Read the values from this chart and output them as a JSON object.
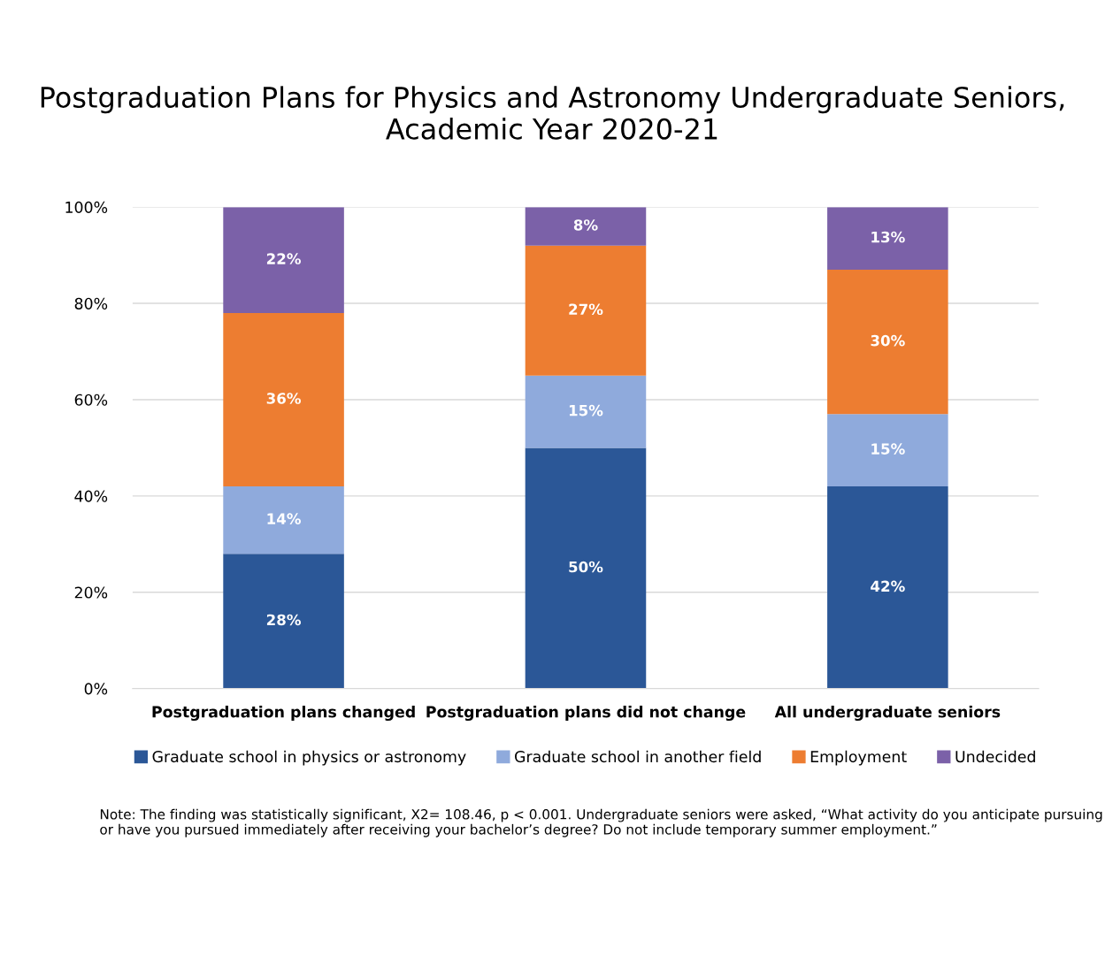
{
  "chart_data": {
    "type": "bar",
    "stacked": true,
    "title": "Postgraduation Plans for Physics and Astronomy Undergraduate Seniors, Academic Year 2020-21",
    "categories": [
      "Postgraduation plans changed",
      "Postgraduation plans did not change",
      "All undergraduate seniors"
    ],
    "series": [
      {
        "name": "Graduate school in physics or astronomy",
        "color": "#2b5797",
        "values": [
          28,
          50,
          42
        ],
        "value_labels": [
          "28%",
          "50%",
          "42%"
        ]
      },
      {
        "name": "Graduate school in another field",
        "color": "#8faadc",
        "values": [
          14,
          15,
          15
        ],
        "value_labels": [
          "14%",
          "15%",
          "15%"
        ]
      },
      {
        "name": "Employment",
        "color": "#ed7d31",
        "values": [
          36,
          27,
          30
        ],
        "value_labels": [
          "36%",
          "27%",
          "30%"
        ]
      },
      {
        "name": "Undecided",
        "color": "#7b61a8",
        "values": [
          22,
          8,
          13
        ],
        "value_labels": [
          "22%",
          "8%",
          "13%"
        ]
      }
    ],
    "ylim": [
      0,
      100
    ],
    "yticks": [
      {
        "value": 0,
        "label": "0%"
      },
      {
        "value": 20,
        "label": "20%"
      },
      {
        "value": 40,
        "label": "40%"
      },
      {
        "value": 60,
        "label": "60%"
      },
      {
        "value": 80,
        "label": "80%"
      },
      {
        "value": 100,
        "label": "100%"
      }
    ],
    "grid": "y",
    "legend": "bottom",
    "annotations": [
      "Note: The finding was statistically significant, X2= 108.46, p < 0.001. Undergraduate seniors were asked, “What activity do you anticipate pursuing or have you pursued immediately after receiving your bachelor’s degree? Do not include temporary summer employment.”"
    ]
  }
}
